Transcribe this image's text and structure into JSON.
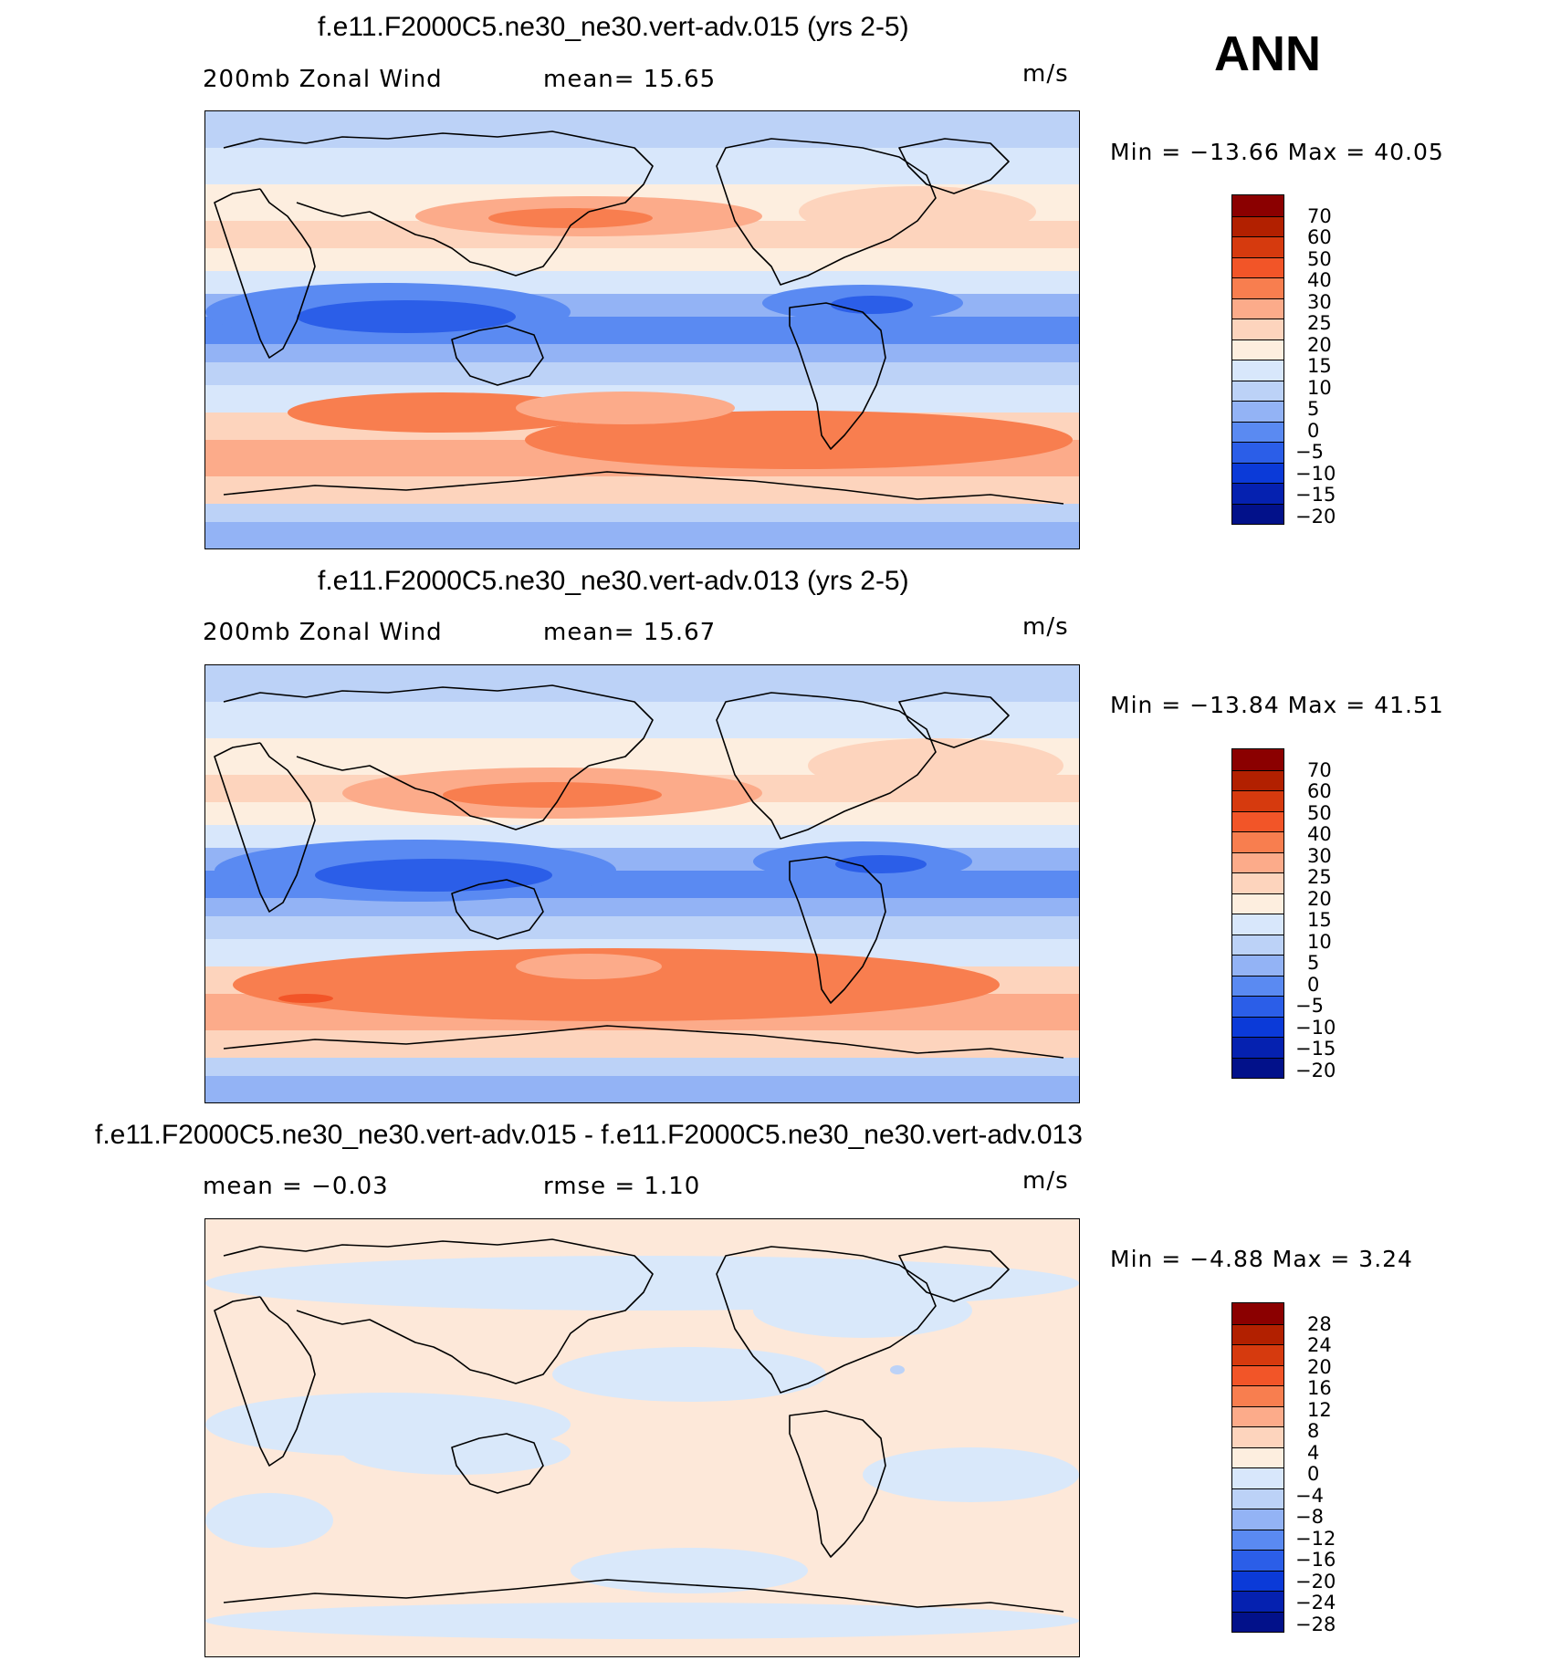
{
  "season": "ANN",
  "panels": [
    {
      "title": "f.e11.F2000C5.ne30_ne30.vert-adv.015 (yrs 2-5)",
      "left_label": "200mb Zonal Wind",
      "center_label": "mean=   15.65",
      "units": "m/s",
      "minmax": "Min = −13.66 Max =   40.05",
      "levels": [
        "70",
        "60",
        "50",
        "40",
        "30",
        "25",
        "20",
        "15",
        "10",
        "5",
        "0",
        "−5",
        "−10",
        "−15",
        "−20"
      ]
    },
    {
      "title": "f.e11.F2000C5.ne30_ne30.vert-adv.013 (yrs 2-5)",
      "left_label": "200mb Zonal Wind",
      "center_label": "mean=   15.67",
      "units": "m/s",
      "minmax": "Min = −13.84 Max =   41.51",
      "levels": [
        "70",
        "60",
        "50",
        "40",
        "30",
        "25",
        "20",
        "15",
        "10",
        "5",
        "0",
        "−5",
        "−10",
        "−15",
        "−20"
      ]
    },
    {
      "title": "f.e11.F2000C5.ne30_ne30.vert-adv.015 - f.e11.F2000C5.ne30_ne30.vert-adv.013",
      "left_label": "mean =   −0.03",
      "center_label": "rmse =    1.10",
      "units": "m/s",
      "minmax": "Min =   −4.88 Max =    3.24",
      "levels": [
        "28",
        "24",
        "20",
        "16",
        "12",
        "8",
        "4",
        "0",
        "−4",
        "−8",
        "−12",
        "−16",
        "−20",
        "−24",
        "−28"
      ]
    }
  ],
  "colors": {
    "colorbar": [
      "#8b0000",
      "#b22000",
      "#d63a0e",
      "#f25528",
      "#f87e4f",
      "#fcab8a",
      "#fdd4bd",
      "#fdeedf",
      "#d8e7fb",
      "#bcd2f7",
      "#93b3f5",
      "#5a8af2",
      "#2b5ee8",
      "#0b3ad8",
      "#0521b0",
      "#02118a"
    ],
    "diff_pos": "#fde8d9",
    "diff_neg": "#d9e8fa",
    "diff_neg2": "#bcd2f7"
  }
}
